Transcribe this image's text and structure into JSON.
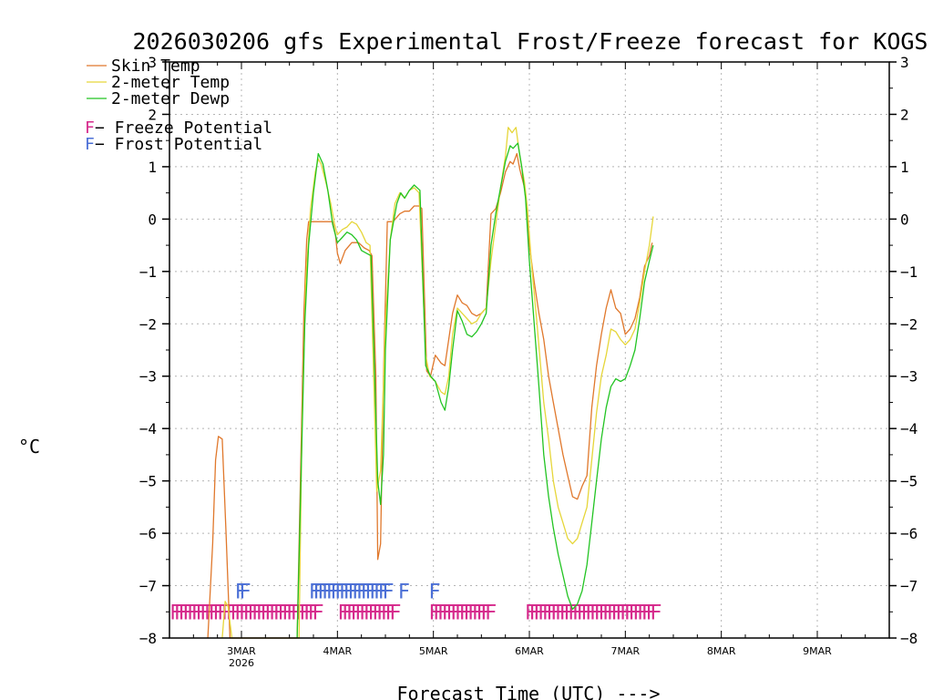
{
  "chart_data": {
    "type": "line",
    "title": "2026030206 gfs Experimental Frost/Freeze forecast for KOGS",
    "ylabel": "°C",
    "xlabel": "Forecast Time (UTC) --->",
    "ylim": [
      -8,
      3
    ],
    "yticks": [
      -8,
      -7,
      -6,
      -5,
      -4,
      -3,
      -2,
      -1,
      0,
      1,
      2,
      3
    ],
    "ytick_labels": [
      "−8",
      "−7",
      "−6",
      "−5",
      "−4",
      "−3",
      "−2",
      "−1",
      "0",
      "1",
      "2",
      "3"
    ],
    "xlim_days": [
      2.25,
      9.75
    ],
    "xticks": [
      {
        "day": 3,
        "label": "3MAR",
        "sub": "2026"
      },
      {
        "day": 4,
        "label": "4MAR",
        "sub": ""
      },
      {
        "day": 5,
        "label": "5MAR",
        "sub": ""
      },
      {
        "day": 6,
        "label": "6MAR",
        "sub": ""
      },
      {
        "day": 7,
        "label": "7MAR",
        "sub": ""
      },
      {
        "day": 8,
        "label": "8MAR",
        "sub": ""
      },
      {
        "day": 9,
        "label": "9MAR",
        "sub": ""
      }
    ],
    "grid": true,
    "legend_placement": "top-left",
    "series": [
      {
        "name": "Skin Temp",
        "color": "#e0782c",
        "points": [
          [
            2.65,
            -8.0
          ],
          [
            2.7,
            -6.2
          ],
          [
            2.73,
            -4.6
          ],
          [
            2.76,
            -4.15
          ],
          [
            2.8,
            -4.2
          ],
          [
            2.84,
            -6.0
          ],
          [
            2.88,
            -8.0
          ],
          [
            3.58,
            -8.0
          ],
          [
            3.62,
            -4.5
          ],
          [
            3.65,
            -1.8
          ],
          [
            3.68,
            -0.4
          ],
          [
            3.7,
            -0.05
          ],
          [
            3.75,
            -0.05
          ],
          [
            3.85,
            -0.05
          ],
          [
            3.95,
            -0.05
          ],
          [
            3.98,
            -0.3
          ],
          [
            4.0,
            -0.65
          ],
          [
            4.03,
            -0.85
          ],
          [
            4.08,
            -0.6
          ],
          [
            4.15,
            -0.45
          ],
          [
            4.22,
            -0.45
          ],
          [
            4.28,
            -0.55
          ],
          [
            4.33,
            -0.6
          ],
          [
            4.36,
            -0.7
          ],
          [
            4.4,
            -3.0
          ],
          [
            4.42,
            -6.5
          ],
          [
            4.45,
            -6.2
          ],
          [
            4.48,
            -3.0
          ],
          [
            4.52,
            -0.05
          ],
          [
            4.58,
            -0.05
          ],
          [
            4.65,
            0.1
          ],
          [
            4.7,
            0.15
          ],
          [
            4.75,
            0.15
          ],
          [
            4.8,
            0.25
          ],
          [
            4.85,
            0.25
          ],
          [
            4.88,
            0.2
          ],
          [
            4.93,
            -2.9
          ],
          [
            4.97,
            -3.0
          ],
          [
            5.02,
            -2.6
          ],
          [
            5.08,
            -2.75
          ],
          [
            5.12,
            -2.8
          ],
          [
            5.16,
            -2.3
          ],
          [
            5.2,
            -1.8
          ],
          [
            5.25,
            -1.45
          ],
          [
            5.3,
            -1.6
          ],
          [
            5.35,
            -1.65
          ],
          [
            5.4,
            -1.8
          ],
          [
            5.45,
            -1.85
          ],
          [
            5.5,
            -1.8
          ],
          [
            5.55,
            -1.7
          ],
          [
            5.6,
            0.1
          ],
          [
            5.65,
            0.2
          ],
          [
            5.7,
            0.5
          ],
          [
            5.75,
            0.9
          ],
          [
            5.8,
            1.1
          ],
          [
            5.83,
            1.05
          ],
          [
            5.87,
            1.25
          ],
          [
            5.9,
            0.95
          ],
          [
            5.95,
            0.6
          ],
          [
            5.98,
            0.1
          ],
          [
            6.0,
            -0.5
          ],
          [
            6.05,
            -1.2
          ],
          [
            6.1,
            -1.8
          ],
          [
            6.15,
            -2.3
          ],
          [
            6.2,
            -3.0
          ],
          [
            6.25,
            -3.5
          ],
          [
            6.3,
            -4.0
          ],
          [
            6.35,
            -4.5
          ],
          [
            6.4,
            -4.9
          ],
          [
            6.45,
            -5.3
          ],
          [
            6.5,
            -5.35
          ],
          [
            6.55,
            -5.1
          ],
          [
            6.6,
            -4.9
          ],
          [
            6.65,
            -3.6
          ],
          [
            6.7,
            -2.8
          ],
          [
            6.75,
            -2.2
          ],
          [
            6.8,
            -1.7
          ],
          [
            6.85,
            -1.35
          ],
          [
            6.9,
            -1.7
          ],
          [
            6.95,
            -1.8
          ],
          [
            7.0,
            -2.2
          ],
          [
            7.05,
            -2.1
          ],
          [
            7.1,
            -1.9
          ],
          [
            7.15,
            -1.5
          ],
          [
            7.2,
            -0.9
          ],
          [
            7.25,
            -0.7
          ],
          [
            7.28,
            -0.45
          ]
        ]
      },
      {
        "name": "2-meter Temp",
        "color": "#e6d63a",
        "points": [
          [
            2.8,
            -8.0
          ],
          [
            2.83,
            -7.3
          ],
          [
            2.86,
            -7.4
          ],
          [
            2.9,
            -8.0
          ],
          [
            3.6,
            -8.0
          ],
          [
            3.63,
            -4.0
          ],
          [
            3.67,
            -1.2
          ],
          [
            3.72,
            0.2
          ],
          [
            3.77,
            0.9
          ],
          [
            3.8,
            1.15
          ],
          [
            3.83,
            1.05
          ],
          [
            3.88,
            0.7
          ],
          [
            3.93,
            0.3
          ],
          [
            3.97,
            -0.1
          ],
          [
            4.0,
            -0.3
          ],
          [
            4.05,
            -0.2
          ],
          [
            4.1,
            -0.15
          ],
          [
            4.15,
            -0.05
          ],
          [
            4.2,
            -0.1
          ],
          [
            4.25,
            -0.25
          ],
          [
            4.3,
            -0.45
          ],
          [
            4.34,
            -0.5
          ],
          [
            4.38,
            -3.2
          ],
          [
            4.41,
            -5.2
          ],
          [
            4.45,
            -4.8
          ],
          [
            4.5,
            -2.0
          ],
          [
            4.55,
            -0.4
          ],
          [
            4.6,
            0.3
          ],
          [
            4.65,
            0.5
          ],
          [
            4.7,
            0.4
          ],
          [
            4.75,
            0.55
          ],
          [
            4.8,
            0.6
          ],
          [
            4.85,
            0.5
          ],
          [
            4.92,
            -2.6
          ],
          [
            4.96,
            -3.0
          ],
          [
            5.02,
            -3.1
          ],
          [
            5.08,
            -3.3
          ],
          [
            5.12,
            -3.35
          ],
          [
            5.16,
            -3.0
          ],
          [
            5.2,
            -2.2
          ],
          [
            5.25,
            -1.7
          ],
          [
            5.3,
            -1.8
          ],
          [
            5.35,
            -1.9
          ],
          [
            5.4,
            -2.0
          ],
          [
            5.45,
            -1.95
          ],
          [
            5.5,
            -1.8
          ],
          [
            5.55,
            -1.7
          ],
          [
            5.6,
            -0.8
          ],
          [
            5.65,
            -0.1
          ],
          [
            5.7,
            0.6
          ],
          [
            5.75,
            1.2
          ],
          [
            5.78,
            1.75
          ],
          [
            5.82,
            1.65
          ],
          [
            5.86,
            1.75
          ],
          [
            5.9,
            1.2
          ],
          [
            5.95,
            0.7
          ],
          [
            5.98,
            0.2
          ],
          [
            6.02,
            -0.8
          ],
          [
            6.08,
            -2.0
          ],
          [
            6.15,
            -3.5
          ],
          [
            6.2,
            -4.2
          ],
          [
            6.25,
            -5.0
          ],
          [
            6.3,
            -5.5
          ],
          [
            6.35,
            -5.8
          ],
          [
            6.4,
            -6.1
          ],
          [
            6.45,
            -6.2
          ],
          [
            6.5,
            -6.1
          ],
          [
            6.55,
            -5.8
          ],
          [
            6.6,
            -5.5
          ],
          [
            6.65,
            -4.6
          ],
          [
            6.7,
            -3.7
          ],
          [
            6.75,
            -3.0
          ],
          [
            6.8,
            -2.6
          ],
          [
            6.85,
            -2.1
          ],
          [
            6.9,
            -2.15
          ],
          [
            6.95,
            -2.3
          ],
          [
            7.0,
            -2.4
          ],
          [
            7.05,
            -2.3
          ],
          [
            7.1,
            -2.1
          ],
          [
            7.15,
            -1.6
          ],
          [
            7.2,
            -1.0
          ],
          [
            7.25,
            -0.5
          ],
          [
            7.29,
            0.05
          ]
        ]
      },
      {
        "name": "2-meter Dewp",
        "color": "#22c422",
        "points": [
          [
            3.58,
            -8.0
          ],
          [
            3.62,
            -5.0
          ],
          [
            3.66,
            -2.0
          ],
          [
            3.7,
            -0.5
          ],
          [
            3.75,
            0.5
          ],
          [
            3.8,
            1.25
          ],
          [
            3.85,
            1.05
          ],
          [
            3.9,
            0.55
          ],
          [
            3.95,
            -0.1
          ],
          [
            4.0,
            -0.45
          ],
          [
            4.05,
            -0.35
          ],
          [
            4.1,
            -0.25
          ],
          [
            4.15,
            -0.3
          ],
          [
            4.2,
            -0.4
          ],
          [
            4.25,
            -0.6
          ],
          [
            4.3,
            -0.65
          ],
          [
            4.35,
            -0.7
          ],
          [
            4.38,
            -2.5
          ],
          [
            4.42,
            -5.0
          ],
          [
            4.45,
            -5.45
          ],
          [
            4.48,
            -4.5
          ],
          [
            4.5,
            -2.5
          ],
          [
            4.55,
            -0.4
          ],
          [
            4.62,
            0.3
          ],
          [
            4.66,
            0.5
          ],
          [
            4.7,
            0.4
          ],
          [
            4.75,
            0.55
          ],
          [
            4.8,
            0.65
          ],
          [
            4.86,
            0.55
          ],
          [
            4.92,
            -2.8
          ],
          [
            4.97,
            -3.0
          ],
          [
            5.02,
            -3.1
          ],
          [
            5.08,
            -3.5
          ],
          [
            5.12,
            -3.65
          ],
          [
            5.16,
            -3.2
          ],
          [
            5.2,
            -2.5
          ],
          [
            5.25,
            -1.75
          ],
          [
            5.3,
            -1.95
          ],
          [
            5.35,
            -2.2
          ],
          [
            5.4,
            -2.25
          ],
          [
            5.45,
            -2.15
          ],
          [
            5.5,
            -2.0
          ],
          [
            5.55,
            -1.8
          ],
          [
            5.6,
            -0.5
          ],
          [
            5.65,
            0.1
          ],
          [
            5.7,
            0.6
          ],
          [
            5.75,
            1.1
          ],
          [
            5.8,
            1.4
          ],
          [
            5.83,
            1.35
          ],
          [
            5.88,
            1.45
          ],
          [
            5.92,
            1.0
          ],
          [
            5.96,
            0.4
          ],
          [
            6.0,
            -0.8
          ],
          [
            6.05,
            -2.0
          ],
          [
            6.1,
            -3.2
          ],
          [
            6.15,
            -4.5
          ],
          [
            6.2,
            -5.3
          ],
          [
            6.25,
            -5.9
          ],
          [
            6.3,
            -6.4
          ],
          [
            6.35,
            -6.8
          ],
          [
            6.4,
            -7.2
          ],
          [
            6.45,
            -7.45
          ],
          [
            6.5,
            -7.35
          ],
          [
            6.55,
            -7.1
          ],
          [
            6.6,
            -6.6
          ],
          [
            6.65,
            -5.8
          ],
          [
            6.7,
            -5.0
          ],
          [
            6.75,
            -4.2
          ],
          [
            6.8,
            -3.6
          ],
          [
            6.85,
            -3.2
          ],
          [
            6.9,
            -3.05
          ],
          [
            6.95,
            -3.1
          ],
          [
            7.0,
            -3.05
          ],
          [
            7.05,
            -2.8
          ],
          [
            7.1,
            -2.5
          ],
          [
            7.15,
            -1.9
          ],
          [
            7.2,
            -1.2
          ],
          [
            7.25,
            -0.8
          ],
          [
            7.29,
            -0.5
          ]
        ]
      }
    ],
    "markers": [
      {
        "name": "Freeze Potential",
        "letter": "F",
        "color": "#d62a8c",
        "y": -7.5,
        "ranges": [
          [
            2.25,
            3.8
          ],
          [
            4.0,
            4.6
          ],
          [
            4.95,
            5.6
          ],
          [
            5.95,
            7.3
          ]
        ]
      },
      {
        "name": "Frost Potential",
        "letter": "F",
        "color": "#4b6fd6",
        "y": -7.1,
        "ranges": [
          [
            2.93,
            3.02
          ],
          [
            3.7,
            4.5
          ]
        ],
        "singles": [
          4.63,
          4.95
        ]
      }
    ],
    "legend": [
      {
        "label": "Skin Temp",
        "color": "#e0782c",
        "kind": "line"
      },
      {
        "label": "2-meter Temp",
        "color": "#e6d63a",
        "kind": "line"
      },
      {
        "label": "2-meter Dewp",
        "color": "#22c422",
        "kind": "line"
      },
      {
        "letter": "F",
        "label": " − Freeze Potential",
        "color": "#d62a8c",
        "kind": "letter"
      },
      {
        "letter": "F",
        "label": " − Frost Potential",
        "color": "#4b6fd6",
        "kind": "letter"
      }
    ]
  }
}
